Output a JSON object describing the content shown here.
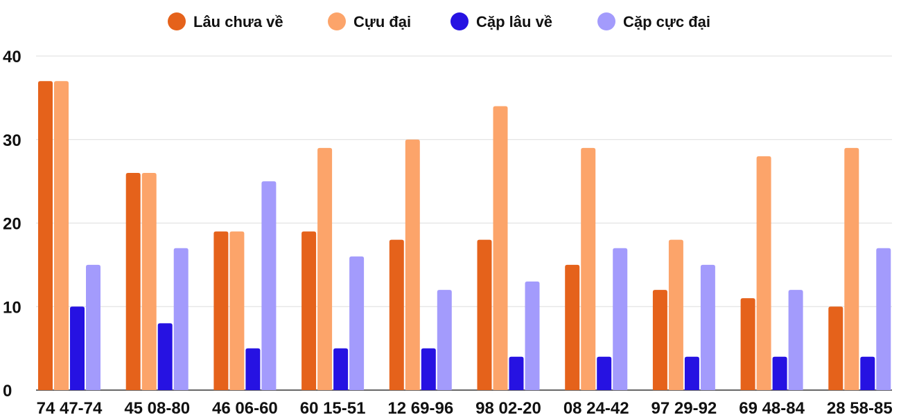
{
  "chart_data": {
    "type": "bar",
    "categories": [
      "74 47-74",
      "45 08-80",
      "46 06-60",
      "60 15-51",
      "12 69-96",
      "98 02-20",
      "08 24-42",
      "97 29-92",
      "69 48-84",
      "28 58-85"
    ],
    "series": [
      {
        "name": "Lâu chưa về",
        "color": "#e5621b",
        "values": [
          37,
          26,
          19,
          19,
          18,
          18,
          15,
          12,
          11,
          10
        ]
      },
      {
        "name": "Cựu đại",
        "color": "#fca46a",
        "values": [
          37,
          26,
          19,
          29,
          30,
          34,
          29,
          18,
          28,
          29
        ]
      },
      {
        "name": "Cặp lâu về",
        "color": "#2612e2",
        "values": [
          10,
          8,
          5,
          5,
          5,
          4,
          4,
          4,
          4,
          4
        ]
      },
      {
        "name": "Cặp cực đại",
        "color": "#a39bfc",
        "values": [
          15,
          17,
          25,
          16,
          12,
          13,
          17,
          15,
          12,
          17
        ]
      }
    ],
    "yticks": [
      "0",
      "10",
      "20",
      "30",
      "40"
    ],
    "ylim": [
      0,
      40
    ],
    "grid": true,
    "legend_position": "top-center"
  }
}
